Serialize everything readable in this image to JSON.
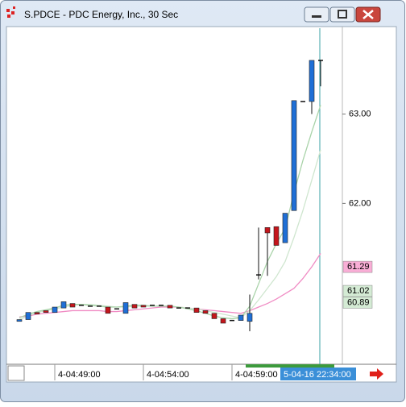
{
  "chart_data": {
    "type": "candlestick",
    "title": "S.PDCE - PDC Energy, Inc., 30 Sec",
    "categories": [
      null,
      null,
      null,
      null,
      "4-04:49:00",
      null,
      null,
      null,
      null,
      null,
      null,
      null,
      null,
      null,
      "4-04:54:00",
      null,
      null,
      null,
      null,
      null,
      null,
      null,
      null,
      null,
      "4-04:59:00",
      null,
      null,
      null,
      null,
      null,
      null,
      null,
      null,
      null,
      null
    ],
    "open": [
      60.68,
      60.7,
      60.78,
      60.8,
      60.78,
      60.83,
      60.88,
      60.86,
      60.85,
      60.85,
      60.84,
      60.82,
      60.77,
      60.87,
      60.86,
      60.86,
      60.86,
      60.86,
      60.83,
      60.83,
      60.83,
      60.8,
      60.77,
      60.71,
      60.69,
      60.69,
      60.68,
      61.2,
      61.73,
      61.74,
      61.56,
      61.92,
      63.14,
      63.14,
      63.6
    ],
    "high": [
      60.7,
      60.78,
      60.78,
      60.8,
      60.84,
      60.9,
      60.88,
      60.86,
      60.85,
      60.85,
      60.84,
      60.82,
      60.89,
      60.87,
      60.86,
      60.86,
      60.86,
      60.86,
      60.83,
      60.83,
      60.83,
      60.8,
      60.77,
      60.71,
      60.69,
      60.75,
      60.98,
      61.73,
      61.73,
      61.74,
      61.89,
      63.15,
      63.14,
      63.6,
      63.6
    ],
    "low": [
      60.68,
      60.7,
      60.77,
      60.78,
      60.78,
      60.83,
      60.84,
      60.86,
      60.85,
      60.85,
      60.77,
      60.82,
      60.77,
      60.83,
      60.84,
      60.86,
      60.86,
      60.83,
      60.83,
      60.83,
      60.78,
      60.77,
      60.71,
      60.66,
      60.69,
      60.69,
      60.57,
      61.15,
      61.19,
      61.53,
      61.56,
      61.92,
      63.14,
      63.0,
      63.31
    ],
    "close": [
      60.7,
      60.78,
      60.77,
      60.78,
      60.84,
      60.9,
      60.84,
      60.86,
      60.85,
      60.85,
      60.77,
      60.82,
      60.89,
      60.83,
      60.84,
      60.86,
      60.86,
      60.83,
      60.83,
      60.83,
      60.78,
      60.77,
      60.71,
      60.66,
      60.69,
      60.75,
      60.77,
      61.2,
      61.67,
      61.53,
      61.89,
      63.15,
      63.14,
      63.6,
      63.6
    ],
    "up_color": "#1f6fd6",
    "down_color": "#c4161c",
    "overlays": [
      {
        "color": "#f08cc4",
        "values": [
          60.73,
          60.74,
          60.76,
          60.77,
          60.78,
          60.79,
          60.8,
          60.8,
          60.8,
          60.8,
          60.79,
          60.79,
          60.8,
          60.81,
          60.82,
          60.83,
          60.84,
          60.84,
          60.84,
          60.83,
          60.82,
          60.81,
          60.8,
          60.79,
          60.78,
          60.77,
          60.8,
          60.84,
          60.88,
          60.93,
          60.99,
          61.05,
          61.16,
          61.29,
          61.44
        ]
      },
      {
        "color": "#cfe6cf",
        "values": [
          60.7,
          60.74,
          60.78,
          60.8,
          60.82,
          60.84,
          60.86,
          60.87,
          60.87,
          60.86,
          60.85,
          60.84,
          60.84,
          60.85,
          60.85,
          60.85,
          60.85,
          60.85,
          60.84,
          60.83,
          60.82,
          60.8,
          60.78,
          60.76,
          60.74,
          60.72,
          60.8,
          60.92,
          61.05,
          61.18,
          61.35,
          61.62,
          61.92,
          62.26,
          62.6
        ]
      },
      {
        "color": "#a9d3a9",
        "values": [
          60.72,
          60.76,
          60.79,
          60.81,
          60.83,
          60.86,
          60.87,
          60.87,
          60.86,
          60.85,
          60.84,
          60.84,
          60.85,
          60.86,
          60.86,
          60.85,
          60.85,
          60.85,
          60.84,
          60.82,
          60.8,
          60.77,
          60.74,
          60.72,
          60.71,
          60.72,
          60.85,
          61.1,
          61.35,
          61.55,
          61.72,
          62.12,
          62.48,
          62.8,
          63.1
        ]
      }
    ],
    "ylim": [
      60.2,
      63.96
    ],
    "yticks": [
      {
        "value": 62,
        "label": "62.00"
      },
      {
        "value": 63,
        "label": "63.00"
      }
    ],
    "price_labels": [
      {
        "value": 61.29,
        "label": "61.29",
        "color": "#f9aed6"
      },
      {
        "value": 61.02,
        "label": "61.02",
        "color": "#d4ebd4"
      },
      {
        "value": 60.89,
        "label": "60.89",
        "color": "#d4ebd4"
      }
    ],
    "cursor_label": "5-04-16 22:34:00"
  }
}
